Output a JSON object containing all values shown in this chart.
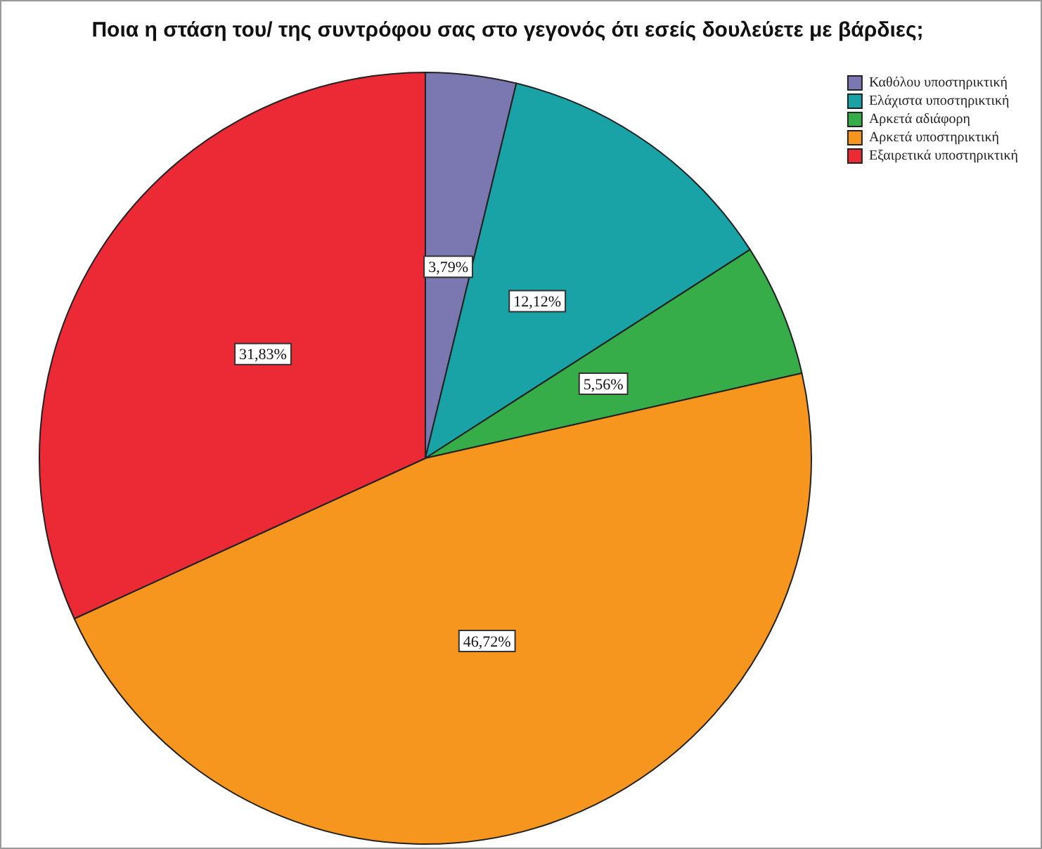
{
  "chart_data": {
    "type": "pie",
    "title": "Ποια η στάση του/ της συντρόφου σας στο γεγονός ότι εσείς δουλεύετε με βάρδιες;",
    "categories": [
      "Καθόλου υποστηρικτική",
      "Ελάχιστα υποστηρικτική",
      "Αρκετά αδιάφορη",
      "Αρκετά υποστηρικτική",
      "Εξαιρετικά υποστηρικτική"
    ],
    "values": [
      3.79,
      12.12,
      5.56,
      46.72,
      31.83
    ],
    "value_labels": [
      "3,79%",
      "12,12%",
      "5,56%",
      "46,72%",
      "31,83%"
    ],
    "colors": [
      "#7b77b0",
      "#1aa3a6",
      "#36ad48",
      "#f7961e",
      "#eb2a36"
    ],
    "legend": "top right"
  }
}
